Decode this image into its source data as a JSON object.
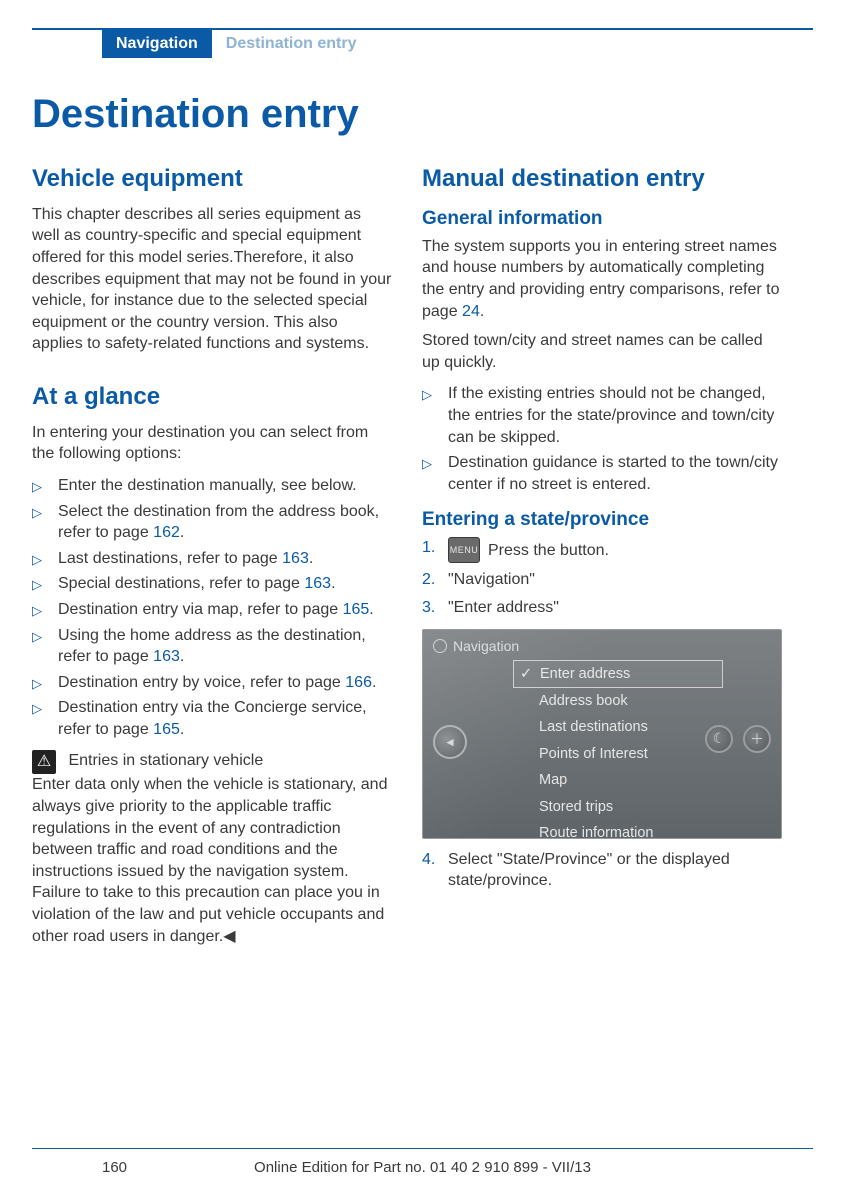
{
  "header": {
    "tab_active": "Navigation",
    "tab_inactive": "Destination entry"
  },
  "title": "Destination entry",
  "left": {
    "h_vehicle": "Vehicle equipment",
    "p_vehicle": "This chapter describes all series equipment as well as country-specific and special equipment offered for this model series.Therefore, it also describes equipment that may not be found in your vehicle, for instance due to the selected special equipment or the country version. This also applies to safety-related functions and systems.",
    "h_glance": "At a glance",
    "p_glance": "In entering your destination you can select from the following options:",
    "bullets": [
      {
        "pre": "Enter the destination manually, see below.",
        "link": "",
        "post": ""
      },
      {
        "pre": "Select the destination from the address book, refer to page ",
        "link": "162",
        "post": "."
      },
      {
        "pre": "Last destinations, refer to page ",
        "link": "163",
        "post": "."
      },
      {
        "pre": "Special destinations, refer to page ",
        "link": "163",
        "post": "."
      },
      {
        "pre": "Destination entry via map, refer to page ",
        "link": "165",
        "post": "."
      },
      {
        "pre": "Using the home address as the destination, refer to page ",
        "link": "163",
        "post": "."
      },
      {
        "pre": "Destination entry by voice, refer to page ",
        "link": "166",
        "post": "."
      },
      {
        "pre": "Destination entry via the Concierge service, refer to page ",
        "link": "165",
        "post": "."
      }
    ],
    "warn_title": "Entries in stationary vehicle",
    "warn_body": "Enter data only when the vehicle is stationary, and always give priority to the applicable traffic regulations in the event of any contradiction between traffic and road conditions and the instructions issued by the navigation system. Failure to take to this precaution can place you in violation of the law and put vehicle occupants and other road users in danger.◀"
  },
  "right": {
    "h_manual": "Manual destination entry",
    "h_general": "General information",
    "p_general_pre": "The system supports you in entering street names and house numbers by automatically completing the entry and providing entry comparisons, refer to page ",
    "p_general_link": "24",
    "p_general_post": ".",
    "p_stored": "Stored town/city and street names can be called up quickly.",
    "bullets": [
      "If the existing entries should not be changed, the entries for the state/province and town/city can be skipped.",
      "Destination guidance is started to the town/city center if no street is entered."
    ],
    "h_entering": "Entering a state/province",
    "ol": {
      "n1": "1.",
      "item1_btn": "MENU",
      "item1_text": "Press the button.",
      "n2": "2.",
      "item2": "\"Navigation\"",
      "n3": "3.",
      "item3": "\"Enter address\"",
      "n4": "4.",
      "item4": "Select \"State/Province\" or the displayed state/province."
    },
    "ss": {
      "title": "Navigation",
      "items": [
        "Enter address",
        "Address book",
        "Last destinations",
        "Points of Interest",
        "Map",
        "Stored trips",
        "Route information"
      ]
    }
  },
  "footer": {
    "page": "160",
    "edition": "Online Edition for Part no. 01 40 2 910 899 - VII/13"
  }
}
